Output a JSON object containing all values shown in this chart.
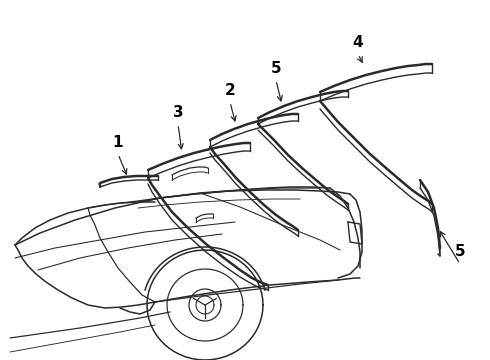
{
  "bg_color": "#ffffff",
  "line_color": "#2a2a2a",
  "lw_thick": 1.8,
  "lw_thin": 1.0,
  "lw_car": 1.1,
  "label_fs": 11
}
